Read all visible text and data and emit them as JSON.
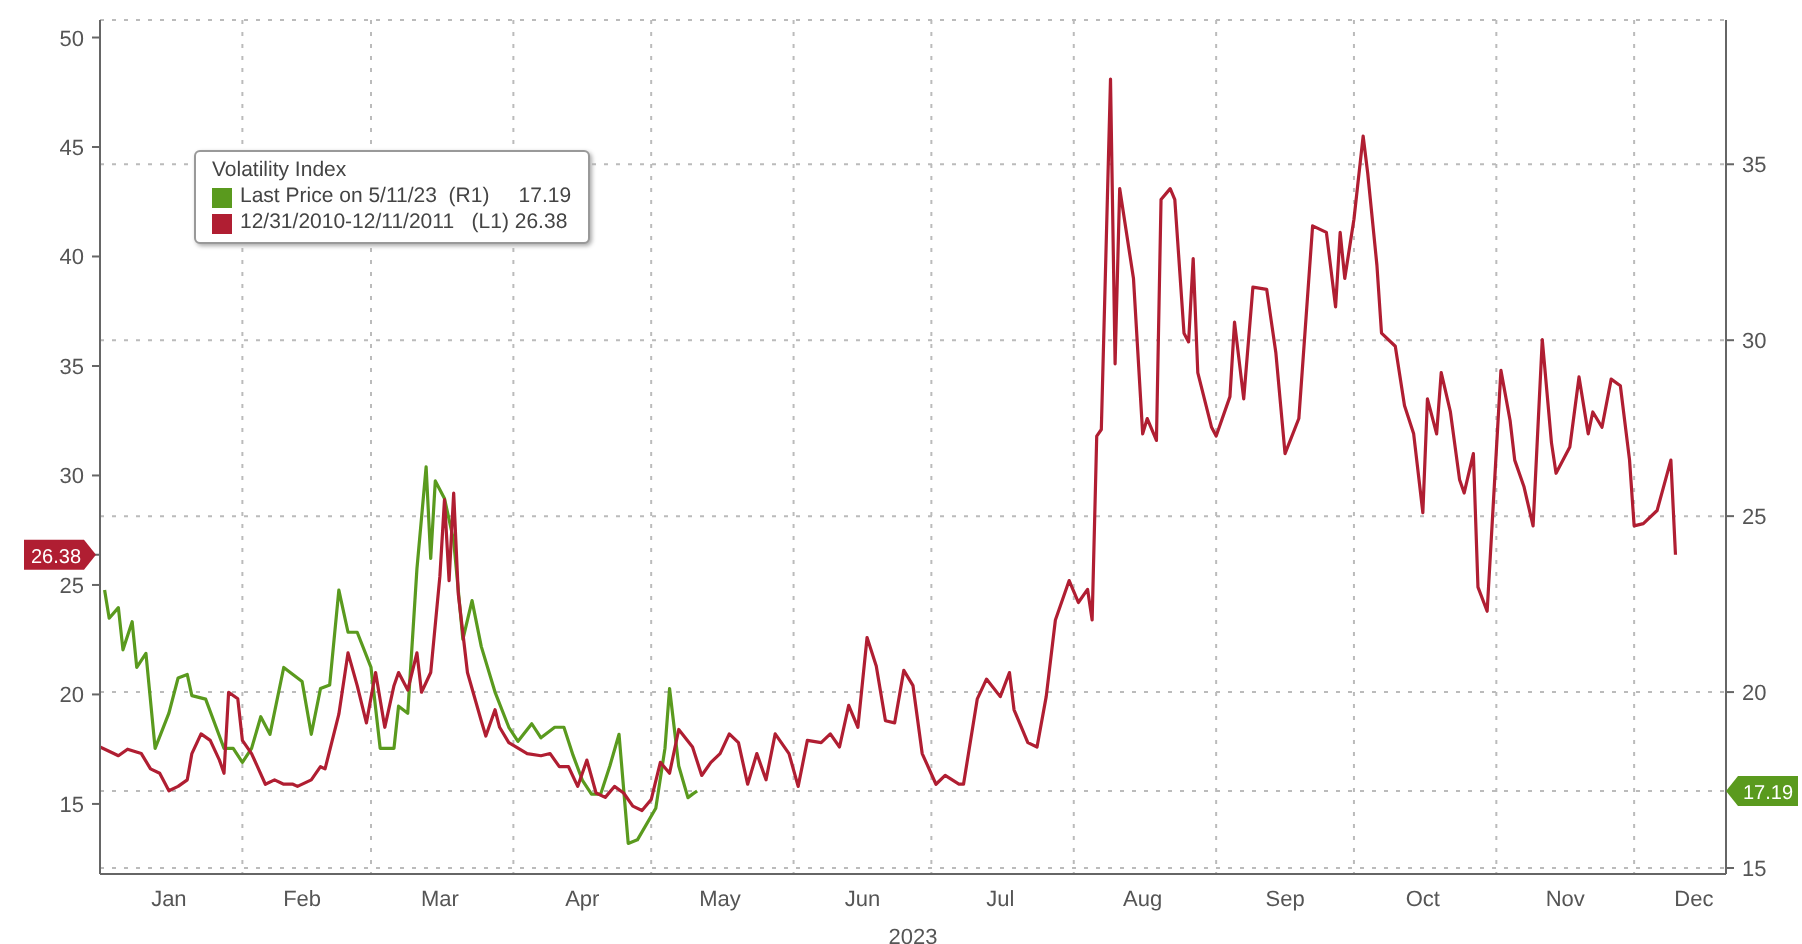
{
  "chart_data": {
    "type": "line",
    "legend_title": "Volatility Index",
    "xlabel": "2023",
    "xlim": [
      "2023-01-01",
      "2023-12-21"
    ],
    "xticks": [
      {
        "value": "2023-01-16",
        "label": "Jan"
      },
      {
        "value": "2023-02-01",
        "label": null
      },
      {
        "value": "2023-02-14",
        "label": "Feb"
      },
      {
        "value": "2023-03-01",
        "label": null
      },
      {
        "value": "2023-03-16",
        "label": "Mar"
      },
      {
        "value": "2023-04-01",
        "label": null
      },
      {
        "value": "2023-04-16",
        "label": "Apr"
      },
      {
        "value": "2023-05-01",
        "label": null
      },
      {
        "value": "2023-05-16",
        "label": "May"
      },
      {
        "value": "2023-06-01",
        "label": null
      },
      {
        "value": "2023-06-16",
        "label": "Jun"
      },
      {
        "value": "2023-07-01",
        "label": null
      },
      {
        "value": "2023-07-16",
        "label": "Jul"
      },
      {
        "value": "2023-08-01",
        "label": null
      },
      {
        "value": "2023-08-16",
        "label": "Aug"
      },
      {
        "value": "2023-09-01",
        "label": null
      },
      {
        "value": "2023-09-16",
        "label": "Sep"
      },
      {
        "value": "2023-10-01",
        "label": null
      },
      {
        "value": "2023-10-16",
        "label": "Oct"
      },
      {
        "value": "2023-11-01",
        "label": null
      },
      {
        "value": "2023-11-16",
        "label": "Nov"
      },
      {
        "value": "2023-12-01",
        "label": null
      },
      {
        "value": "2023-12-14",
        "label": "Dec"
      }
    ],
    "ylim": [
      11.8,
      50.8
    ],
    "yticks": [
      15,
      20,
      25,
      26.38,
      30,
      35,
      40,
      45,
      50
    ],
    "y2lim": [
      14.83,
      39.1
    ],
    "y2ticks": [
      15,
      17.19,
      20,
      25,
      30,
      35
    ],
    "grid": true,
    "legend": "top left",
    "series": [
      {
        "name": "Last Price on 5/11/23  (R1)     17.19",
        "color": "#5a9a1e",
        "axis": "y2",
        "x": [
          "2023-01-02",
          "2023-01-03",
          "2023-01-05",
          "2023-01-06",
          "2023-01-08",
          "2023-01-09",
          "2023-01-11",
          "2023-01-13",
          "2023-01-16",
          "2023-01-18",
          "2023-01-20",
          "2023-01-21",
          "2023-01-24",
          "2023-01-26",
          "2023-01-28",
          "2023-01-30",
          "2023-02-01",
          "2023-02-03",
          "2023-02-05",
          "2023-02-07",
          "2023-02-10",
          "2023-02-12",
          "2023-02-14",
          "2023-02-16",
          "2023-02-18",
          "2023-02-20",
          "2023-02-22",
          "2023-02-24",
          "2023-02-26",
          "2023-03-01",
          "2023-03-03",
          "2023-03-06",
          "2023-03-07",
          "2023-03-09",
          "2023-03-11",
          "2023-03-13",
          "2023-03-14",
          "2023-03-15",
          "2023-03-17",
          "2023-03-19",
          "2023-03-21",
          "2023-03-23",
          "2023-03-25",
          "2023-03-28",
          "2023-03-31",
          "2023-04-02",
          "2023-04-05",
          "2023-04-07",
          "2023-04-10",
          "2023-04-12",
          "2023-04-14",
          "2023-04-16",
          "2023-04-18",
          "2023-04-20",
          "2023-04-22",
          "2023-04-24",
          "2023-04-26",
          "2023-04-28",
          "2023-05-02",
          "2023-05-04",
          "2023-05-05",
          "2023-05-07",
          "2023-05-09",
          "2023-05-10",
          "2023-05-11"
        ],
        "values": [
          22.9,
          22.1,
          22.4,
          21.2,
          22.0,
          20.7,
          21.1,
          18.4,
          19.4,
          20.4,
          20.5,
          19.9,
          19.8,
          19.1,
          18.4,
          18.4,
          18.0,
          18.4,
          19.3,
          18.8,
          20.7,
          20.5,
          20.3,
          18.8,
          20.1,
          20.2,
          22.9,
          21.7,
          21.7,
          20.7,
          18.4,
          18.4,
          19.6,
          19.4,
          23.5,
          26.4,
          23.8,
          26.0,
          25.5,
          24.3,
          21.5,
          22.6,
          21.3,
          20.0,
          19.0,
          18.6,
          19.1,
          18.7,
          19.0,
          19.0,
          18.2,
          17.5,
          17.1,
          17.1,
          17.9,
          18.8,
          15.7,
          15.8,
          16.7,
          18.4,
          20.1,
          17.9,
          17.0,
          17.1,
          17.19
        ]
      },
      {
        "name": "12/31/2010-12/11/2011   (L1) 26.38",
        "color": "#b01e32",
        "axis": "y",
        "x": [
          "2023-01-01",
          "2023-01-04",
          "2023-01-05",
          "2023-01-07",
          "2023-01-10",
          "2023-01-12",
          "2023-01-14",
          "2023-01-16",
          "2023-01-18",
          "2023-01-20",
          "2023-01-21",
          "2023-01-23",
          "2023-01-25",
          "2023-01-27",
          "2023-01-28",
          "2023-01-29",
          "2023-01-31",
          "2023-02-01",
          "2023-02-03",
          "2023-02-06",
          "2023-02-08",
          "2023-02-10",
          "2023-02-12",
          "2023-02-13",
          "2023-02-16",
          "2023-02-18",
          "2023-02-19",
          "2023-02-22",
          "2023-02-24",
          "2023-02-26",
          "2023-02-28",
          "2023-03-02",
          "2023-03-04",
          "2023-03-06",
          "2023-03-07",
          "2023-03-09",
          "2023-03-11",
          "2023-03-12",
          "2023-03-14",
          "2023-03-16",
          "2023-03-17",
          "2023-03-18",
          "2023-03-19",
          "2023-03-20",
          "2023-03-22",
          "2023-03-25",
          "2023-03-26",
          "2023-03-28",
          "2023-03-29",
          "2023-03-31",
          "2023-04-04",
          "2023-04-07",
          "2023-04-09",
          "2023-04-11",
          "2023-04-13",
          "2023-04-15",
          "2023-04-17",
          "2023-04-19",
          "2023-04-21",
          "2023-04-23",
          "2023-04-25",
          "2023-04-27",
          "2023-04-29",
          "2023-05-01",
          "2023-05-03",
          "2023-05-05",
          "2023-05-07",
          "2023-05-10",
          "2023-05-12",
          "2023-05-14",
          "2023-05-16",
          "2023-05-18",
          "2023-05-20",
          "2023-05-22",
          "2023-05-24",
          "2023-05-26",
          "2023-05-28",
          "2023-05-31",
          "2023-06-02",
          "2023-06-04",
          "2023-06-07",
          "2023-06-09",
          "2023-06-11",
          "2023-06-13",
          "2023-06-15",
          "2023-06-17",
          "2023-06-19",
          "2023-06-21",
          "2023-06-23",
          "2023-06-25",
          "2023-06-27",
          "2023-06-29",
          "2023-07-02",
          "2023-07-04",
          "2023-07-07",
          "2023-07-08",
          "2023-07-11",
          "2023-07-13",
          "2023-07-16",
          "2023-07-18",
          "2023-07-19",
          "2023-07-22",
          "2023-07-24",
          "2023-07-26",
          "2023-07-28",
          "2023-07-31",
          "2023-08-02",
          "2023-08-04",
          "2023-08-05",
          "2023-08-06",
          "2023-08-07",
          "2023-08-09",
          "2023-08-10",
          "2023-08-11",
          "2023-08-14",
          "2023-08-16",
          "2023-08-17",
          "2023-08-19",
          "2023-08-20",
          "2023-08-22",
          "2023-08-23",
          "2023-08-25",
          "2023-08-26",
          "2023-08-27",
          "2023-08-28",
          "2023-08-31",
          "2023-09-01",
          "2023-09-04",
          "2023-09-05",
          "2023-09-07",
          "2023-09-09",
          "2023-09-12",
          "2023-09-14",
          "2023-09-16",
          "2023-09-19",
          "2023-09-22",
          "2023-09-25",
          "2023-09-27",
          "2023-09-28",
          "2023-09-29",
          "2023-10-01",
          "2023-10-03",
          "2023-10-04",
          "2023-10-06",
          "2023-10-07",
          "2023-10-10",
          "2023-10-12",
          "2023-10-14",
          "2023-10-16",
          "2023-10-17",
          "2023-10-19",
          "2023-10-20",
          "2023-10-22",
          "2023-10-24",
          "2023-10-25",
          "2023-10-27",
          "2023-10-28",
          "2023-10-30",
          "2023-11-02",
          "2023-11-04",
          "2023-11-05",
          "2023-11-07",
          "2023-11-09",
          "2023-11-11",
          "2023-11-13",
          "2023-11-14",
          "2023-11-17",
          "2023-11-19",
          "2023-11-21",
          "2023-11-22",
          "2023-11-24",
          "2023-11-26",
          "2023-11-28",
          "2023-11-30",
          "2023-12-01",
          "2023-12-03",
          "2023-12-06",
          "2023-12-09",
          "2023-12-10"
        ],
        "values": [
          17.6,
          17.3,
          17.2,
          17.5,
          17.3,
          16.6,
          16.4,
          15.6,
          15.8,
          16.1,
          17.3,
          18.2,
          17.9,
          17.0,
          16.4,
          20.1,
          19.8,
          17.9,
          17.3,
          15.9,
          16.1,
          15.9,
          15.9,
          15.8,
          16.1,
          16.7,
          16.6,
          19.1,
          21.9,
          20.4,
          18.7,
          21.0,
          18.5,
          20.4,
          21.0,
          20.2,
          21.9,
          20.1,
          21.0,
          25.4,
          28.9,
          25.2,
          29.2,
          24.6,
          21.0,
          18.8,
          18.1,
          19.3,
          18.5,
          17.8,
          17.3,
          17.2,
          17.3,
          16.7,
          16.7,
          15.8,
          17.0,
          15.5,
          15.3,
          15.8,
          15.5,
          14.9,
          14.7,
          15.2,
          16.9,
          16.4,
          18.4,
          17.6,
          16.3,
          16.9,
          17.3,
          18.2,
          17.8,
          15.9,
          17.3,
          16.1,
          18.2,
          17.3,
          15.8,
          17.9,
          17.8,
          18.2,
          17.6,
          19.5,
          18.5,
          22.6,
          21.3,
          18.8,
          18.7,
          21.1,
          20.4,
          17.3,
          15.9,
          16.3,
          15.9,
          15.9,
          19.8,
          20.7,
          19.9,
          21.0,
          19.3,
          17.8,
          17.6,
          19.9,
          23.4,
          25.2,
          24.2,
          24.8,
          23.4,
          31.8,
          32.1,
          48.1,
          35.1,
          43.1,
          39.0,
          31.9,
          32.6,
          31.6,
          42.6,
          43.1,
          42.6,
          36.5,
          36.1,
          39.9,
          34.7,
          32.2,
          31.8,
          33.6,
          37.0,
          33.5,
          38.6,
          38.5,
          35.6,
          31.0,
          32.6,
          41.4,
          41.1,
          37.7,
          41.1,
          39.0,
          41.7,
          45.5,
          43.8,
          39.6,
          36.5,
          35.9,
          33.2,
          31.9,
          28.3,
          33.5,
          31.9,
          34.7,
          32.9,
          29.8,
          29.2,
          31.0,
          24.9,
          23.8,
          34.8,
          32.5,
          30.7,
          29.5,
          27.7,
          36.2,
          31.5,
          30.1,
          31.3,
          34.5,
          31.9,
          32.9,
          32.2,
          34.4,
          34.1,
          30.7,
          27.7,
          27.8,
          28.4,
          30.7,
          26.38
        ]
      }
    ]
  }
}
